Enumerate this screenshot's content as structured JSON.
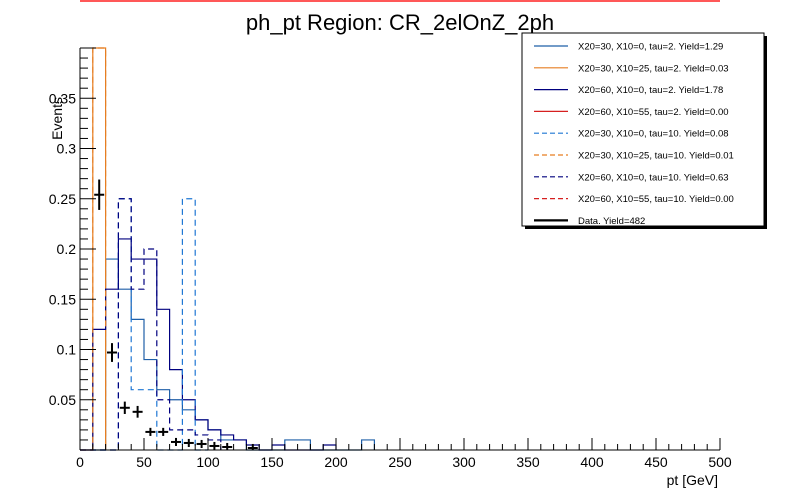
{
  "chart_data": {
    "type": "histogram",
    "title": "ph_pt Region: CR_2elOnZ_2ph",
    "xlabel": "pt [GeV]",
    "ylabel": "Events",
    "xlim": [
      0,
      500
    ],
    "ylim": [
      0,
      0.4
    ],
    "bin_width": 10,
    "x_ticks": [
      0,
      50,
      100,
      150,
      200,
      250,
      300,
      350,
      400,
      450,
      500
    ],
    "y_ticks": [
      0.05,
      0.1,
      0.15,
      0.2,
      0.25,
      0.3,
      0.35
    ],
    "legend_placement": "top-right",
    "series": [
      {
        "name": "X20=30, X10=0, tau=2. Yield=1.29",
        "color": "#1f5fa8",
        "dash": false,
        "values": [
          0.0,
          0.0,
          0.19,
          0.16,
          0.13,
          0.09,
          0.06,
          0.05,
          0.04,
          0.03,
          0.02,
          0.01,
          0.01,
          0.0,
          0.0,
          0.0,
          0.01,
          0.01,
          0.0,
          0.0,
          0.0,
          0.0,
          0.01
        ]
      },
      {
        "name": "X20=30, X10=25, tau=2. Yield=0.03",
        "color": "#e67e22",
        "dash": false,
        "values": [
          0.0,
          0.4
        ]
      },
      {
        "name": "X20=60, X10=0, tau=2. Yield=1.78",
        "color": "#00007f",
        "dash": false,
        "values": [
          0.0,
          0.12,
          0.16,
          0.21,
          0.19,
          0.19,
          0.14,
          0.08,
          0.05,
          0.03,
          0.02,
          0.015,
          0.01,
          0.005,
          0.0,
          0.005,
          0.0,
          0.0,
          0.0,
          0.005
        ]
      },
      {
        "name": "X20=60, X10=55, tau=2. Yield=0.00",
        "color": "#d62020",
        "dash": false,
        "values": []
      },
      {
        "name": "X20=30, X10=0, tau=10. Yield=0.08",
        "color": "#1f77d4",
        "dash": true,
        "values": [
          0.0,
          0.0,
          0.0,
          0.25,
          0.06,
          0.06,
          0.0,
          0.0,
          0.25,
          0.0
        ]
      },
      {
        "name": "X20=30, X10=25, tau=10. Yield=0.01",
        "color": "#e67e22",
        "dash": true,
        "values": [
          0.0,
          0.4
        ]
      },
      {
        "name": "X20=60, X10=0, tau=10. Yield=0.63",
        "color": "#00007f",
        "dash": true,
        "values": [
          0.0,
          0.0,
          0.0,
          0.25,
          0.16,
          0.2,
          0.05,
          0.02,
          0.02,
          0.015,
          0.01
        ]
      },
      {
        "name": "X20=60, X10=55, tau=10. Yield=0.00",
        "color": "#d62020",
        "dash": true,
        "values": []
      },
      {
        "name": "Data. Yield=482",
        "color": "#000000",
        "dash": false,
        "is_data": true,
        "x": [
          15,
          25,
          35,
          45,
          55,
          65,
          75,
          85,
          95,
          105,
          115,
          135
        ],
        "values": [
          0.254,
          0.097,
          0.042,
          0.038,
          0.018,
          0.018,
          0.008,
          0.007,
          0.006,
          0.004,
          0.003,
          0.002
        ]
      }
    ]
  }
}
